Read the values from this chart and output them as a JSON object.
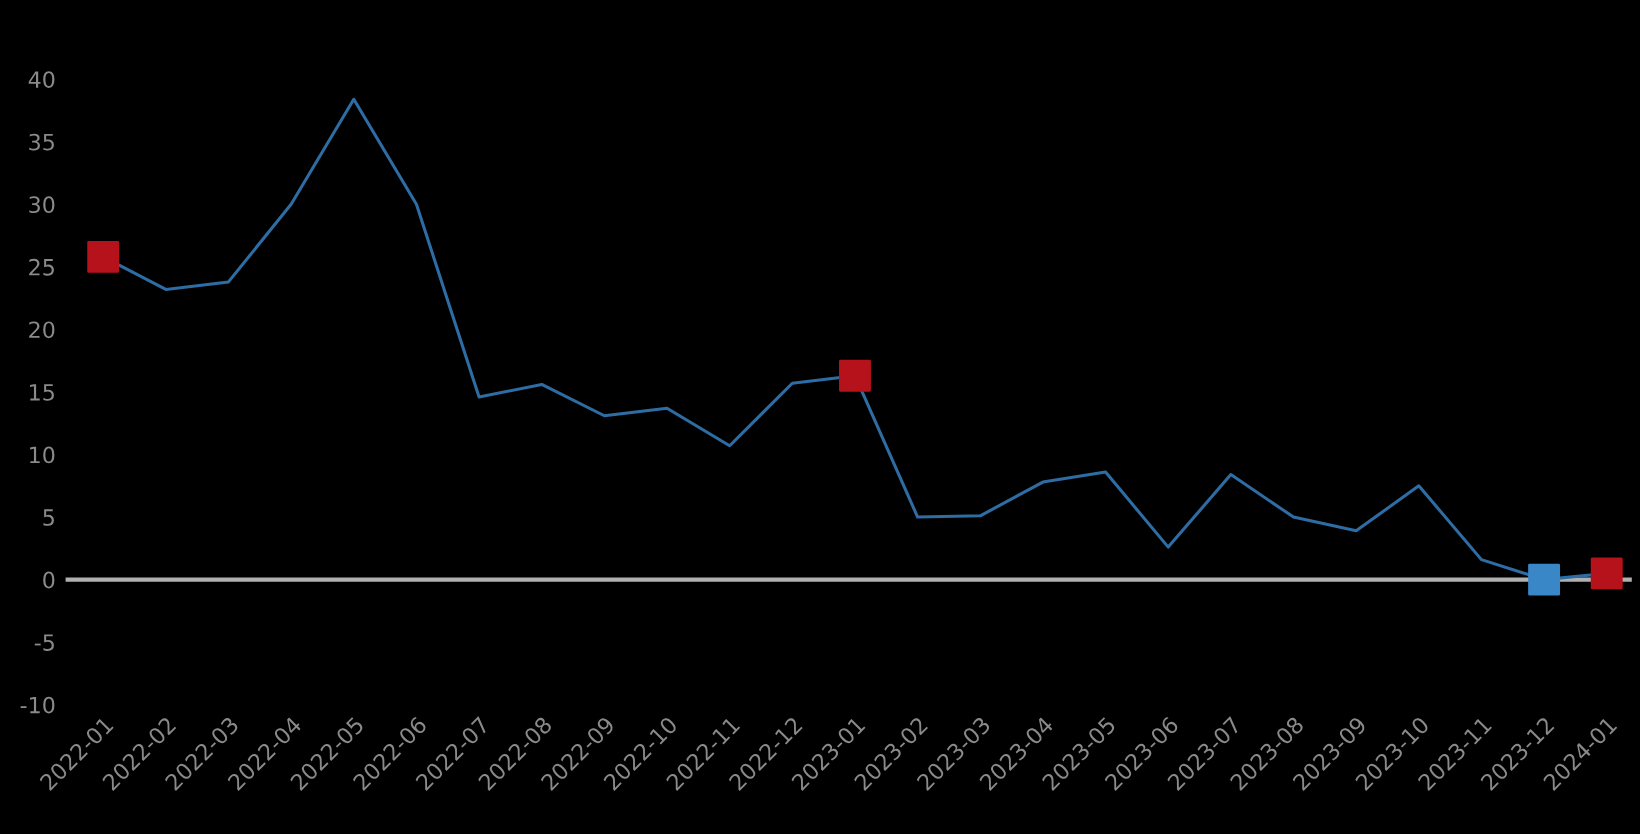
{
  "chart_data": {
    "type": "line",
    "categories": [
      "2022-01",
      "2022-02",
      "2022-03",
      "2022-04",
      "2022-05",
      "2022-06",
      "2022-07",
      "2022-08",
      "2022-09",
      "2022-10",
      "2022-11",
      "2022-12",
      "2023-01",
      "2023-02",
      "2023-03",
      "2023-04",
      "2023-05",
      "2023-06",
      "2023-07",
      "2023-08",
      "2023-09",
      "2023-10",
      "2023-11",
      "2023-12",
      "2024-01"
    ],
    "series": [
      {
        "color": "#2e6da4",
        "values": [
          25.8,
          23.2,
          23.8,
          30.0,
          38.4,
          30.0,
          14.6,
          15.6,
          13.1,
          13.7,
          10.7,
          15.7,
          16.3,
          5.0,
          5.1,
          7.8,
          8.6,
          2.6,
          8.4,
          5.0,
          3.9,
          7.5,
          1.6,
          0,
          0.5
        ]
      },
      {
        "type": "scatter",
        "color": "#b5121b",
        "marker": "square",
        "values": [
          25.8,
          null,
          null,
          null,
          null,
          null,
          null,
          null,
          null,
          null,
          null,
          null,
          16.3,
          null,
          null,
          null,
          null,
          null,
          null,
          null,
          null,
          null,
          null,
          null,
          0.5
        ]
      },
      {
        "type": "scatter",
        "color": "#3a87c8",
        "marker": "square",
        "values": [
          null,
          null,
          null,
          null,
          null,
          null,
          null,
          null,
          null,
          null,
          null,
          null,
          null,
          null,
          null,
          null,
          null,
          null,
          null,
          null,
          null,
          null,
          null,
          0,
          null
        ]
      }
    ],
    "ylim": [
      -10,
      40
    ],
    "yticks": [
      -10,
      -5,
      0,
      5,
      10,
      15,
      20,
      25,
      30,
      35,
      40
    ],
    "ref_lines": [
      {
        "axis": "y",
        "value": 0,
        "color": "#b0b0b0"
      }
    ]
  }
}
